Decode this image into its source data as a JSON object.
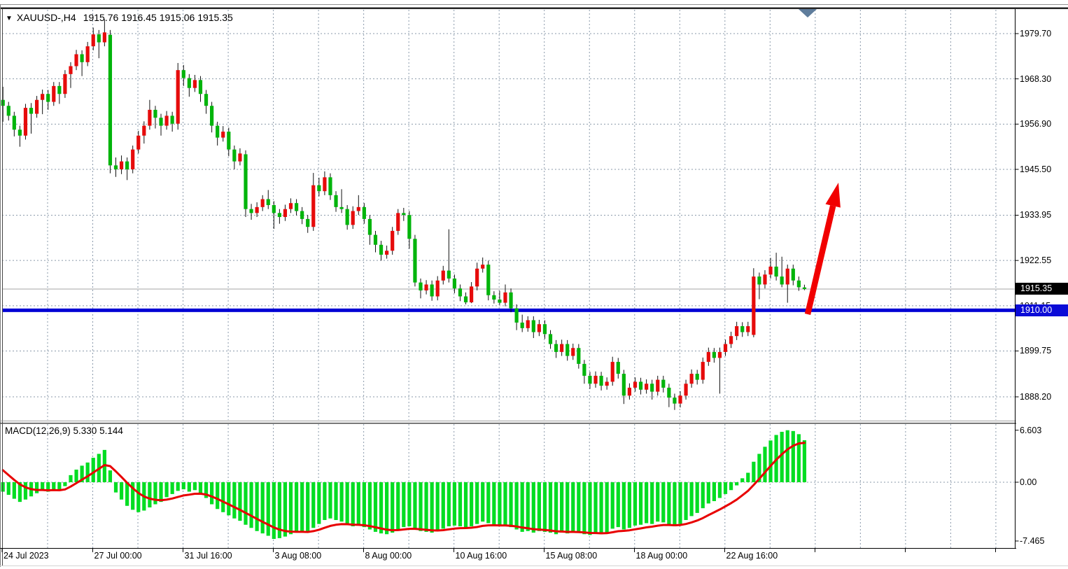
{
  "header": {
    "symbol_period": "XAUUSD-,H4",
    "ohlc_text": "1915.76 1916.45 1915.06 1915.35",
    "dropdown_icon": "triangle-down"
  },
  "macd_panel": {
    "label": "MACD(12,26,9) 5.330 5.144",
    "scale_labels": [
      {
        "text": "6.603",
        "value": 6.603
      },
      {
        "text": "0.00",
        "value": 0.0
      },
      {
        "text": "-7.465",
        "value": -7.465
      }
    ]
  },
  "price_axis": {
    "labels": [
      {
        "text": "1979.70",
        "price": 1979.7
      },
      {
        "text": "1968.30",
        "price": 1968.3
      },
      {
        "text": "1956.90",
        "price": 1956.9
      },
      {
        "text": "1945.50",
        "price": 1945.5
      },
      {
        "text": "1933.95",
        "price": 1933.95
      },
      {
        "text": "1922.55",
        "price": 1922.55
      },
      {
        "text": "1911.15",
        "price": 1911.15
      },
      {
        "text": "1899.75",
        "price": 1899.75
      },
      {
        "text": "1888.20",
        "price": 1888.2
      }
    ],
    "current_badge": "1915.35",
    "level_badge": "1910.00"
  },
  "time_axis": {
    "labels": [
      {
        "text": "24 Jul 2023",
        "x": 3
      },
      {
        "text": "27 Jul 00:00",
        "x": 132.5
      },
      {
        "text": "31 Jul 16:00",
        "x": 261.5
      },
      {
        "text": "3 Aug 08:00",
        "x": 390.5
      },
      {
        "text": "8 Aug 00:00",
        "x": 519.5
      },
      {
        "text": "10 Aug 16:00",
        "x": 648.5
      },
      {
        "text": "15 Aug 08:00",
        "x": 777.5
      },
      {
        "text": "18 Aug 00:00",
        "x": 906.5
      },
      {
        "text": "22 Aug 16:00",
        "x": 1035.5
      }
    ],
    "extra_ticks_x": [
      1164.5,
      1293.5,
      1422.5
    ]
  },
  "colors": {
    "bull_body": "#e60b0b",
    "bear_body": "#00b40b",
    "wick": "#111111",
    "grid": "#8a99aa",
    "macd_hist": "#00dd22",
    "macd_signal": "#e80000",
    "support_line": "#0000d4",
    "current_price_line": "#a6a6a6",
    "arrow": "#f10000",
    "badge_current_bg": "#000000",
    "badge_level_bg": "#0b0bd7",
    "shift_marker": "#5f7d9c",
    "axis_line": "#000000"
  },
  "chart_data": [
    {
      "type": "candlestick",
      "title": "XAUUSD- H4",
      "ylabel": "price",
      "ylim": [
        1884.0,
        1985.5
      ],
      "y_axis_ticks": [
        1979.7,
        1968.3,
        1956.9,
        1945.5,
        1933.95,
        1922.55,
        1911.15,
        1899.75,
        1888.2
      ],
      "x_axis_ticks": [
        "24 Jul 2023",
        "27 Jul 00:00",
        "31 Jul 16:00",
        "3 Aug 08:00",
        "8 Aug 00:00",
        "10 Aug 16:00",
        "15 Aug 08:00",
        "18 Aug 00:00",
        "22 Aug 16:00"
      ],
      "grid": "dashed",
      "legend_position": "none",
      "current_bar_ohlc": {
        "open": 1915.76,
        "high": 1916.45,
        "low": 1915.06,
        "close": 1915.35
      },
      "support_line_price": 1910.0,
      "current_price": 1915.35,
      "annotation_arrow": {
        "from_price": 1910.3,
        "to_price": 1943.5,
        "meaning": "bullish-projection"
      },
      "candles_ohlc": [
        [
          1963.0,
          1966.3,
          1957.5,
          1961.5
        ],
        [
          1961.5,
          1962.5,
          1957.8,
          1959.0
        ],
        [
          1959.0,
          1960.0,
          1953.8,
          1955.5
        ],
        [
          1955.5,
          1956.5,
          1951.2,
          1954.0
        ],
        [
          1954.0,
          1962.0,
          1953.0,
          1961.0
        ],
        [
          1961.0,
          1962.2,
          1954.5,
          1959.5
        ],
        [
          1959.5,
          1964.0,
          1958.5,
          1963.0
        ],
        [
          1963.0,
          1965.6,
          1959.4,
          1964.5
        ],
        [
          1964.5,
          1965.5,
          1960.5,
          1962.5
        ],
        [
          1962.5,
          1967.5,
          1961.5,
          1966.5
        ],
        [
          1966.5,
          1967.5,
          1962.0,
          1964.5
        ],
        [
          1964.5,
          1970.5,
          1963.5,
          1969.5
        ],
        [
          1969.5,
          1972.5,
          1966.0,
          1971.5
        ],
        [
          1971.5,
          1975.6,
          1970.5,
          1974.5
        ],
        [
          1974.5,
          1975.5,
          1969.0,
          1972.5
        ],
        [
          1972.5,
          1977.6,
          1971.5,
          1976.5
        ],
        [
          1976.5,
          1981.2,
          1975.5,
          1979.5
        ],
        [
          1979.5,
          1980.6,
          1973.5,
          1977.5
        ],
        [
          1977.5,
          1983.3,
          1976.5,
          1980.0
        ],
        [
          1979.4,
          1980.6,
          1944.5,
          1946.5
        ],
        [
          1946.5,
          1948.5,
          1943.6,
          1945.5
        ],
        [
          1945.5,
          1949.0,
          1944.3,
          1947.5
        ],
        [
          1947.5,
          1948.5,
          1942.8,
          1945.5
        ],
        [
          1945.5,
          1951.5,
          1944.5,
          1950.5
        ],
        [
          1950.5,
          1955.2,
          1949.5,
          1954.0
        ],
        [
          1954.0,
          1957.6,
          1952.0,
          1956.5
        ],
        [
          1956.5,
          1963.0,
          1955.5,
          1960.5
        ],
        [
          1960.5,
          1961.5,
          1955.8,
          1958.5
        ],
        [
          1958.5,
          1959.5,
          1954.0,
          1956.5
        ],
        [
          1956.5,
          1960.2,
          1955.5,
          1959.0
        ],
        [
          1959.0,
          1960.0,
          1955.0,
          1957.0
        ],
        [
          1957.0,
          1972.3,
          1955.5,
          1970.5
        ],
        [
          1970.5,
          1971.8,
          1966.5,
          1968.5
        ],
        [
          1968.5,
          1969.5,
          1963.8,
          1966.0
        ],
        [
          1966.0,
          1969.3,
          1965.0,
          1968.0
        ],
        [
          1968.0,
          1969.0,
          1962.5,
          1964.5
        ],
        [
          1964.5,
          1965.5,
          1959.5,
          1961.5
        ],
        [
          1961.5,
          1962.5,
          1954.8,
          1956.5
        ],
        [
          1956.5,
          1957.5,
          1951.5,
          1953.5
        ],
        [
          1953.5,
          1956.4,
          1952.5,
          1955.0
        ],
        [
          1955.0,
          1956.0,
          1948.8,
          1950.5
        ],
        [
          1950.5,
          1951.5,
          1945.5,
          1947.5
        ],
        [
          1947.5,
          1950.8,
          1946.5,
          1949.5
        ],
        [
          1949.3,
          1950.3,
          1933.5,
          1935.5
        ],
        [
          1935.5,
          1936.8,
          1932.8,
          1934.5
        ],
        [
          1934.5,
          1937.2,
          1933.5,
          1936.0
        ],
        [
          1936.0,
          1939.0,
          1935.0,
          1938.0
        ],
        [
          1938.0,
          1940.3,
          1935.5,
          1936.5
        ],
        [
          1936.5,
          1937.5,
          1930.5,
          1934.5
        ],
        [
          1934.5,
          1935.5,
          1931.8,
          1933.5
        ],
        [
          1933.5,
          1936.6,
          1932.5,
          1935.5
        ],
        [
          1935.5,
          1938.2,
          1934.5,
          1937.0
        ],
        [
          1937.0,
          1938.0,
          1933.9,
          1935.0
        ],
        [
          1935.0,
          1936.0,
          1931.7,
          1933.0
        ],
        [
          1933.0,
          1934.0,
          1929.5,
          1931.0
        ],
        [
          1931.0,
          1944.6,
          1930.0,
          1941.5
        ],
        [
          1941.5,
          1943.4,
          1938.7,
          1940.0
        ],
        [
          1940.0,
          1945.0,
          1939.0,
          1943.5
        ],
        [
          1943.5,
          1944.5,
          1937.8,
          1939.0
        ],
        [
          1939.0,
          1940.0,
          1934.8,
          1936.0
        ],
        [
          1936.0,
          1940.5,
          1934.5,
          1935.5
        ],
        [
          1935.5,
          1936.5,
          1930.3,
          1931.5
        ],
        [
          1931.5,
          1936.2,
          1930.5,
          1935.0
        ],
        [
          1935.0,
          1939.0,
          1934.0,
          1936.0
        ],
        [
          1936.0,
          1937.0,
          1931.8,
          1933.0
        ],
        [
          1933.0,
          1934.0,
          1926.5,
          1929.0
        ],
        [
          1929.0,
          1930.0,
          1924.6,
          1926.5
        ],
        [
          1926.5,
          1927.5,
          1922.5,
          1924.0
        ],
        [
          1924.0,
          1926.3,
          1923.0,
          1925.0
        ],
        [
          1925.0,
          1931.0,
          1924.0,
          1930.0
        ],
        [
          1930.0,
          1935.5,
          1929.0,
          1934.5
        ],
        [
          1934.5,
          1935.8,
          1932.5,
          1934.0
        ],
        [
          1934.0,
          1935.0,
          1925.5,
          1928.0
        ],
        [
          1928.0,
          1929.0,
          1916.0,
          1917.0
        ],
        [
          1917.0,
          1918.0,
          1913.0,
          1915.0
        ],
        [
          1915.0,
          1917.6,
          1914.0,
          1916.5
        ],
        [
          1916.5,
          1917.5,
          1912.4,
          1913.5
        ],
        [
          1913.5,
          1918.6,
          1912.5,
          1917.5
        ],
        [
          1917.5,
          1921.2,
          1916.5,
          1920.0
        ],
        [
          1920.0,
          1930.4,
          1917.0,
          1918.0
        ],
        [
          1918.0,
          1919.0,
          1914.3,
          1915.5
        ],
        [
          1915.5,
          1916.5,
          1912.3,
          1913.5
        ],
        [
          1913.5,
          1914.5,
          1911.5,
          1912.0
        ],
        [
          1912.0,
          1917.1,
          1911.8,
          1916.0
        ],
        [
          1916.0,
          1922.0,
          1915.0,
          1920.5
        ],
        [
          1920.5,
          1923.3,
          1919.5,
          1921.5
        ],
        [
          1921.5,
          1922.5,
          1912.5,
          1913.8
        ],
        [
          1913.8,
          1914.8,
          1911.7,
          1912.7
        ],
        [
          1912.7,
          1914.9,
          1911.4,
          1911.9
        ],
        [
          1911.9,
          1916.5,
          1911.0,
          1914.5
        ],
        [
          1914.5,
          1915.5,
          1909.5,
          1910.5
        ],
        [
          1910.5,
          1911.5,
          1905.0,
          1906.9
        ],
        [
          1906.9,
          1908.9,
          1904.5,
          1905.5
        ],
        [
          1905.5,
          1908.5,
          1904.6,
          1907.5
        ],
        [
          1907.5,
          1908.5,
          1903.0,
          1904.5
        ],
        [
          1904.5,
          1907.6,
          1903.5,
          1906.5
        ],
        [
          1906.5,
          1907.5,
          1902.8,
          1904.0
        ],
        [
          1904.0,
          1905.0,
          1900.3,
          1901.5
        ],
        [
          1901.5,
          1902.5,
          1898.0,
          1899.5
        ],
        [
          1899.5,
          1902.6,
          1898.5,
          1901.5
        ],
        [
          1901.5,
          1902.5,
          1897.3,
          1898.5
        ],
        [
          1898.5,
          1901.6,
          1897.5,
          1900.5
        ],
        [
          1900.5,
          1901.5,
          1895.3,
          1896.5
        ],
        [
          1896.5,
          1897.5,
          1891.5,
          1893.5
        ],
        [
          1893.5,
          1894.5,
          1890.2,
          1891.5
        ],
        [
          1891.5,
          1894.6,
          1890.5,
          1893.5
        ],
        [
          1893.5,
          1894.5,
          1889.8,
          1891.0
        ],
        [
          1891.0,
          1893.1,
          1890.0,
          1892.0
        ],
        [
          1892.0,
          1898.3,
          1891.0,
          1897.0
        ],
        [
          1897.0,
          1898.0,
          1892.8,
          1894.0
        ],
        [
          1894.0,
          1895.0,
          1886.4,
          1888.5
        ],
        [
          1888.5,
          1891.6,
          1887.5,
          1890.5
        ],
        [
          1890.5,
          1893.1,
          1889.5,
          1892.0
        ],
        [
          1892.0,
          1893.0,
          1888.8,
          1890.0
        ],
        [
          1890.0,
          1892.6,
          1889.0,
          1891.5
        ],
        [
          1891.5,
          1892.5,
          1887.5,
          1889.5
        ],
        [
          1889.5,
          1893.5,
          1888.5,
          1892.5
        ],
        [
          1892.5,
          1893.5,
          1889.3,
          1890.5
        ],
        [
          1890.5,
          1891.5,
          1885.6,
          1888.0
        ],
        [
          1888.0,
          1889.0,
          1884.9,
          1886.5
        ],
        [
          1886.5,
          1889.6,
          1885.5,
          1888.5
        ],
        [
          1888.5,
          1892.5,
          1887.5,
          1891.5
        ],
        [
          1891.5,
          1895.1,
          1890.5,
          1894.0
        ],
        [
          1894.0,
          1895.0,
          1891.3,
          1892.5
        ],
        [
          1892.5,
          1898.1,
          1891.5,
          1897.0
        ],
        [
          1897.0,
          1900.6,
          1896.0,
          1899.5
        ],
        [
          1899.5,
          1900.5,
          1896.8,
          1898.0
        ],
        [
          1898.0,
          1900.6,
          1889.0,
          1899.5
        ],
        [
          1899.5,
          1902.6,
          1898.5,
          1901.5
        ],
        [
          1901.5,
          1904.6,
          1900.5,
          1903.5
        ],
        [
          1903.5,
          1907.1,
          1902.5,
          1906.0
        ],
        [
          1906.0,
          1907.0,
          1903.3,
          1904.5
        ],
        [
          1904.5,
          1907.1,
          1903.5,
          1906.0
        ],
        [
          1903.8,
          1920.6,
          1903.2,
          1918.5
        ],
        [
          1918.5,
          1919.5,
          1912.8,
          1916.5
        ],
        [
          1916.5,
          1920.1,
          1915.5,
          1919.0
        ],
        [
          1919.0,
          1923.2,
          1918.0,
          1921.0
        ],
        [
          1921.0,
          1924.5,
          1917.5,
          1918.5
        ],
        [
          1918.5,
          1923.5,
          1915.8,
          1916.5
        ],
        [
          1916.5,
          1921.5,
          1911.9,
          1920.5
        ],
        [
          1920.5,
          1921.5,
          1916.3,
          1917.5
        ],
        [
          1917.5,
          1918.5,
          1914.9,
          1915.8
        ],
        [
          1915.76,
          1916.45,
          1915.06,
          1915.35
        ]
      ]
    },
    {
      "type": "bar",
      "title": "MACD(12,26,9)",
      "macd_value": 5.33,
      "signal_value": 5.144,
      "ylim": [
        -7.465,
        6.603
      ],
      "y_axis_ticks": [
        6.603,
        0.0,
        -7.465
      ],
      "signal_ema_period": 9,
      "signal_seed": 2.2,
      "hist_values": [
        -1.2,
        -1.6,
        -2.1,
        -2.5,
        -2.2,
        -1.8,
        -1.4,
        -1.0,
        -1.2,
        -0.9,
        -1.1,
        -0.5,
        0.9,
        1.6,
        2.1,
        2.5,
        3.1,
        3.6,
        4.1,
        1.5,
        -1.3,
        -2.2,
        -3.0,
        -3.5,
        -3.8,
        -3.6,
        -3.2,
        -2.8,
        -2.5,
        -1.9,
        -1.5,
        -1.1,
        -0.9,
        -1.2,
        -1.0,
        -1.4,
        -2.0,
        -2.8,
        -3.4,
        -3.8,
        -4.2,
        -4.6,
        -4.9,
        -5.4,
        -5.8,
        -6.2,
        -6.5,
        -6.8,
        -7.2,
        -7.1,
        -6.9,
        -6.6,
        -6.4,
        -6.3,
        -6.4,
        -5.8,
        -5.3,
        -4.8,
        -4.6,
        -4.8,
        -5.0,
        -5.4,
        -5.6,
        -5.5,
        -5.7,
        -6.0,
        -6.3,
        -6.5,
        -6.6,
        -6.4,
        -6.0,
        -5.7,
        -5.6,
        -5.9,
        -6.2,
        -6.3,
        -6.4,
        -6.2,
        -5.9,
        -5.6,
        -5.5,
        -5.6,
        -5.8,
        -5.6,
        -5.3,
        -5.0,
        -5.2,
        -5.4,
        -5.6,
        -5.5,
        -5.7,
        -6.0,
        -6.3,
        -6.2,
        -6.4,
        -6.2,
        -6.3,
        -6.4,
        -6.6,
        -6.4,
        -6.5,
        -6.3,
        -6.4,
        -6.6,
        -6.7,
        -6.5,
        -6.6,
        -6.4,
        -5.9,
        -5.7,
        -6.0,
        -5.8,
        -5.5,
        -5.4,
        -5.2,
        -5.3,
        -5.0,
        -5.1,
        -5.4,
        -5.6,
        -5.3,
        -4.8,
        -4.3,
        -3.9,
        -3.3,
        -2.7,
        -2.4,
        -2.0,
        -1.5,
        -1.0,
        -0.4,
        0.5,
        1.2,
        2.6,
        3.6,
        4.5,
        5.3,
        6.0,
        6.4,
        6.6,
        6.5,
        6.1,
        5.33
      ]
    }
  ]
}
